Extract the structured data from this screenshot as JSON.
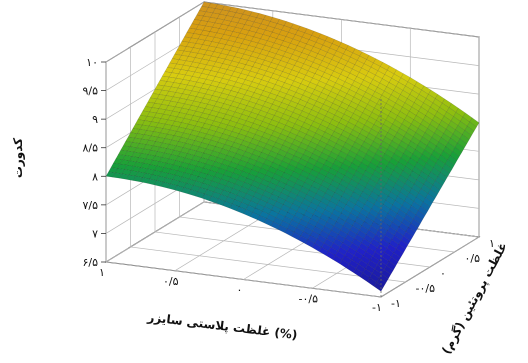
{
  "chart_data": {
    "type": "surface",
    "zlabel": "کدورت",
    "xlabel": "غلظت پلاستی سایزر (%)",
    "ylabel": "غلظت پروتئین (گرم)",
    "zlim": [
      6.5,
      10
    ],
    "x_ticks": [
      {
        "value": 1,
        "label": "۱"
      },
      {
        "value": 0.5,
        "label": "۰/۵"
      },
      {
        "value": 0,
        "label": "۰"
      },
      {
        "value": -0.5,
        "label": "-۰/۵"
      },
      {
        "value": -1,
        "label": "-۱"
      }
    ],
    "y_ticks": [
      {
        "value": 1,
        "label": "۱"
      },
      {
        "value": 0.5,
        "label": "۰/۵"
      },
      {
        "value": 0,
        "label": "۰"
      },
      {
        "value": -0.5,
        "label": "-۰/۵"
      },
      {
        "value": -1,
        "label": "-۱"
      }
    ],
    "z_ticks": [
      {
        "value": 10,
        "label": "۱۰"
      },
      {
        "value": 9.5,
        "label": "۹/۵"
      },
      {
        "value": 9,
        "label": "۹"
      },
      {
        "value": 8.5,
        "label": "۸/۵"
      },
      {
        "value": 8,
        "label": "۸"
      },
      {
        "value": 7.5,
        "label": "۷/۵"
      },
      {
        "value": 7,
        "label": "۷"
      },
      {
        "value": 6.5,
        "label": "۶/۵"
      }
    ],
    "surface_corners": [
      {
        "x": 1,
        "y": -1,
        "z": 8.0
      },
      {
        "x": -1,
        "y": -1,
        "z": 6.6
      },
      {
        "x": 1,
        "y": 1,
        "z": 10.0
      },
      {
        "x": -1,
        "y": 1,
        "z": 8.5
      }
    ],
    "colormap": [
      "#1a1a9a",
      "#2020c8",
      "#0a74a0",
      "#18a038",
      "#8cbe10",
      "#d8cc10",
      "#d8a010",
      "#c88a28"
    ],
    "grid": true
  }
}
